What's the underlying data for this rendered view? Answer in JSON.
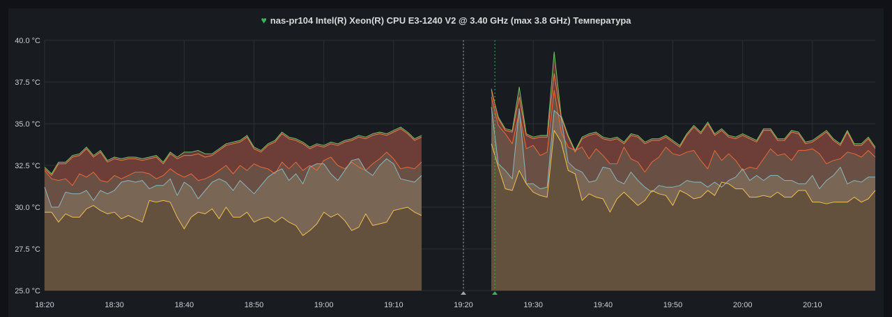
{
  "panel": {
    "title": "nas-pr104 Intel(R) Xeon(R) CPU E3-1240 V2 @ 3.40 GHz (max 3.8 GHz) Температура",
    "title_icon": "heart-icon",
    "status_color": "#37b55b"
  },
  "chart_data": {
    "type": "area",
    "title": "nas-pr104 Intel(R) Xeon(R) CPU E3-1240 V2 @ 3.40 GHz (max 3.8 GHz) Температура",
    "ylim": [
      25,
      40
    ],
    "yticks": [
      25,
      27.5,
      30,
      32.5,
      35,
      37.5,
      40
    ],
    "ytick_labels": [
      "25.0 °C",
      "27.5 °C",
      "30.0 °C",
      "32.5 °C",
      "35.0 °C",
      "37.5 °C",
      "40.0 °C"
    ],
    "x_range": [
      "18:20",
      "20:19"
    ],
    "xtick_labels": [
      "18:20",
      "18:30",
      "18:40",
      "18:50",
      "19:00",
      "19:10",
      "19:20",
      "19:30",
      "19:40",
      "19:50",
      "20:00",
      "20:10"
    ],
    "grid": true,
    "annotations": [
      {
        "time": "19:20",
        "color": "#9fa7b3"
      },
      {
        "time": "19:24.5",
        "color": "#37b55b"
      }
    ],
    "segments": [
      {
        "x": [
          "18:20",
          "18:21",
          "18:22",
          "18:23",
          "18:24",
          "18:25",
          "18:26",
          "18:27",
          "18:28",
          "18:29",
          "18:30",
          "18:31",
          "18:32",
          "18:33",
          "18:34",
          "18:35",
          "18:36",
          "18:37",
          "18:38",
          "18:39",
          "18:40",
          "18:41",
          "18:42",
          "18:43",
          "18:44",
          "18:45",
          "18:46",
          "18:47",
          "18:48",
          "18:49",
          "18:50",
          "18:51",
          "18:52",
          "18:53",
          "18:54",
          "18:55",
          "18:56",
          "18:57",
          "18:58",
          "18:59",
          "19:00",
          "19:01",
          "19:02",
          "19:03",
          "19:04",
          "19:05",
          "19:06",
          "19:07",
          "19:08",
          "19:09",
          "19:10",
          "19:11",
          "19:12",
          "19:13",
          "19:14"
        ],
        "series": [
          {
            "values": [
              32.4,
              32.0,
              32.7,
              32.7,
              33.1,
              33.2,
              33.6,
              33.1,
              33.4,
              32.8,
              33.0,
              32.9,
              33.0,
              33.0,
              32.9,
              33.0,
              33.1,
              32.7,
              33.3,
              33.0,
              33.3,
              33.3,
              33.4,
              33.2,
              33.2,
              33.5,
              33.8,
              33.9,
              34.0,
              34.3,
              33.6,
              33.4,
              33.8,
              34.0,
              34.5,
              34.2,
              34.1,
              33.9,
              33.6,
              33.8,
              33.7,
              33.9,
              33.8,
              34.0,
              34.1,
              34.3,
              34.2,
              34.4,
              34.5,
              34.4,
              34.6,
              34.8,
              34.5,
              34.1,
              34.3
            ]
          },
          {
            "values": [
              32.3,
              31.9,
              32.6,
              32.6,
              33.0,
              33.1,
              33.5,
              33.0,
              33.3,
              32.7,
              32.9,
              32.8,
              32.9,
              32.9,
              32.8,
              32.9,
              33.0,
              32.6,
              33.2,
              32.9,
              33.1,
              33.1,
              33.2,
              33.0,
              33.1,
              33.4,
              33.7,
              33.8,
              33.9,
              34.2,
              33.5,
              33.3,
              33.7,
              33.9,
              34.4,
              34.1,
              34.0,
              33.8,
              33.5,
              33.7,
              33.6,
              33.8,
              33.7,
              33.9,
              34.0,
              34.2,
              34.1,
              34.3,
              34.4,
              34.3,
              34.5,
              34.7,
              34.4,
              34.0,
              34.2
            ]
          },
          {
            "values": [
              32.2,
              31.7,
              31.6,
              31.7,
              31.3,
              32.0,
              31.8,
              32.1,
              31.6,
              31.5,
              31.9,
              31.7,
              31.9,
              32.1,
              32.1,
              32.0,
              31.7,
              31.9,
              32.3,
              32.0,
              31.8,
              32.0,
              31.6,
              31.7,
              31.9,
              32.2,
              32.5,
              32.0,
              32.5,
              32.2,
              32.6,
              32.4,
              32.3,
              32.0,
              32.7,
              32.3,
              32.7,
              32.2,
              32.5,
              32.2,
              32.8,
              33.0,
              32.5,
              32.3,
              32.7,
              32.4,
              32.2,
              32.6,
              32.9,
              33.3,
              32.9,
              32.3,
              32.4,
              32.3,
              32.7
            ]
          },
          {
            "values": [
              31.2,
              30.0,
              30.0,
              30.9,
              30.8,
              30.8,
              31.0,
              30.4,
              31.0,
              30.8,
              31.0,
              31.5,
              31.6,
              31.5,
              31.6,
              31.1,
              31.3,
              31.3,
              31.7,
              30.7,
              31.5,
              31.2,
              30.5,
              31.0,
              31.5,
              31.7,
              31.5,
              31.0,
              31.6,
              31.2,
              30.8,
              31.3,
              31.8,
              32.1,
              32.3,
              31.6,
              32.0,
              31.4,
              32.4,
              32.6,
              32.6,
              32.0,
              31.6,
              32.2,
              32.8,
              32.9,
              32.2,
              31.9,
              32.5,
              32.9,
              32.6,
              31.7,
              31.6,
              31.5,
              31.9
            ]
          },
          {
            "values": [
              29.7,
              29.7,
              29.1,
              29.6,
              29.4,
              29.4,
              29.9,
              30.1,
              29.8,
              29.6,
              29.7,
              29.3,
              29.5,
              29.3,
              29.1,
              30.4,
              30.3,
              30.4,
              30.3,
              29.4,
              28.7,
              29.4,
              29.7,
              29.6,
              29.9,
              29.3,
              30.0,
              29.4,
              29.4,
              29.7,
              29.1,
              29.3,
              29.4,
              29.1,
              29.4,
              29.1,
              28.9,
              28.3,
              28.6,
              29.0,
              29.7,
              29.4,
              29.6,
              29.2,
              28.6,
              28.8,
              29.6,
              28.9,
              29.0,
              29.1,
              29.8,
              29.9,
              30.0,
              29.7,
              29.5
            ]
          }
        ]
      },
      {
        "x": [
          "19:24",
          "19:25",
          "19:26",
          "19:27",
          "19:28",
          "19:29",
          "19:30",
          "19:31",
          "19:32",
          "19:33",
          "19:34",
          "19:35",
          "19:36",
          "19:37",
          "19:38",
          "19:39",
          "19:40",
          "19:41",
          "19:42",
          "19:43",
          "19:44",
          "19:45",
          "19:46",
          "19:47",
          "19:48",
          "19:49",
          "19:50",
          "19:51",
          "19:52",
          "19:53",
          "19:54",
          "19:55",
          "19:56",
          "19:57",
          "19:58",
          "19:59",
          "20:00",
          "20:01",
          "20:02",
          "20:03",
          "20:04",
          "20:05",
          "20:06",
          "20:07",
          "20:08",
          "20:09",
          "20:10",
          "20:11",
          "20:12",
          "20:13",
          "20:14",
          "20:15",
          "20:16",
          "20:17",
          "20:18",
          "20:19"
        ],
        "series": [
          {
            "values": [
              37.0,
              35.4,
              34.7,
              34.6,
              37.2,
              34.4,
              34.2,
              34.3,
              34.3,
              39.3,
              35.5,
              34.3,
              33.4,
              34.2,
              34.4,
              34.5,
              34.2,
              34.1,
              34.2,
              33.9,
              34.4,
              34.3,
              33.9,
              34.1,
              34.1,
              34.3,
              34.0,
              33.7,
              34.4,
              34.9,
              34.5,
              35.1,
              34.4,
              34.7,
              34.3,
              34.2,
              34.4,
              34.2,
              34.0,
              34.7,
              34.7,
              34.1,
              34.1,
              34.6,
              34.5,
              33.9,
              34.0,
              34.3,
              34.6,
              34.1,
              33.8,
              34.6,
              33.8,
              33.8,
              34.2,
              33.6
            ]
          },
          {
            "values": [
              37.1,
              35.3,
              34.6,
              34.5,
              36.6,
              34.3,
              34.1,
              34.2,
              34.2,
              38.0,
              35.4,
              34.2,
              33.3,
              34.1,
              34.3,
              34.4,
              34.1,
              34.0,
              34.1,
              33.8,
              34.3,
              34.2,
              33.8,
              34.0,
              34.0,
              34.2,
              33.9,
              33.6,
              34.3,
              34.8,
              34.4,
              35.0,
              34.3,
              34.6,
              34.2,
              34.1,
              34.3,
              34.1,
              33.9,
              34.6,
              34.6,
              34.0,
              34.0,
              34.5,
              34.4,
              33.8,
              33.9,
              34.2,
              34.5,
              34.0,
              33.7,
              34.5,
              33.7,
              33.7,
              34.1,
              33.5
            ]
          },
          {
            "values": [
              36.6,
              34.9,
              34.4,
              33.8,
              35.7,
              33.5,
              33.7,
              33.1,
              33.3,
              37.0,
              34.5,
              33.6,
              33.4,
              33.6,
              32.9,
              33.5,
              33.1,
              32.6,
              32.6,
              33.6,
              32.9,
              32.7,
              32.1,
              32.7,
              33.0,
              33.6,
              33.2,
              33.1,
              33.3,
              33.4,
              32.8,
              32.3,
              33.4,
              32.8,
              33.2,
              32.8,
              32.2,
              32.4,
              32.3,
              32.9,
              33.5,
              33.1,
              33.2,
              32.8,
              33.4,
              33.4,
              33.5,
              33.2,
              32.6,
              32.8,
              32.9,
              33.3,
              33.2,
              33.0,
              33.4,
              33.0
            ]
          },
          {
            "values": [
              36.0,
              32.6,
              32.2,
              31.7,
              35.9,
              31.4,
              31.4,
              31.1,
              31.2,
              35.8,
              35.4,
              32.7,
              32.3,
              32.1,
              31.5,
              31.6,
              32.4,
              32.3,
              31.6,
              31.4,
              32.1,
              31.6,
              31.2,
              30.9,
              31.3,
              31.2,
              31.2,
              31.3,
              31.6,
              31.5,
              31.5,
              31.2,
              31.5,
              31.2,
              31.6,
              31.8,
              32.3,
              31.6,
              31.9,
              31.6,
              31.9,
              31.9,
              31.6,
              31.6,
              31.4,
              31.4,
              31.9,
              31.1,
              31.6,
              31.9,
              32.4,
              31.4,
              31.6,
              31.5,
              31.8,
              31.8
            ]
          },
          {
            "values": [
              33.8,
              32.4,
              31.1,
              31.0,
              32.2,
              31.4,
              30.9,
              30.7,
              30.6,
              34.6,
              33.9,
              32.2,
              32.0,
              30.4,
              30.8,
              30.6,
              30.5,
              29.7,
              30.5,
              30.9,
              30.5,
              30.1,
              30.4,
              31.0,
              30.8,
              30.7,
              30.1,
              31.0,
              30.8,
              30.5,
              30.6,
              31.0,
              30.7,
              31.5,
              31.4,
              31.1,
              31.1,
              30.6,
              30.6,
              30.7,
              30.6,
              30.9,
              30.6,
              30.6,
              31.0,
              31.0,
              30.3,
              30.3,
              30.2,
              30.3,
              30.3,
              30.3,
              30.6,
              30.3,
              30.5,
              31.0
            ]
          }
        ]
      }
    ],
    "series_colors": [
      "#73bf69",
      "#e3804e",
      "#e86b3a",
      "#8ab8bf",
      "#f2c055"
    ],
    "fill_colors": [
      "#6e4038",
      "#6e4038",
      "#6a5248",
      "#7d6a58",
      "#5f4c39"
    ]
  }
}
